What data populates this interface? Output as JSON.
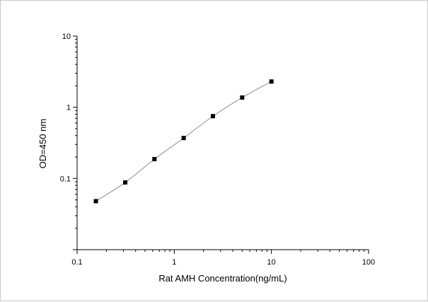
{
  "chart_data": {
    "type": "scatter",
    "title": "",
    "xlabel": "Rat AMH Concentration(ng/mL)",
    "ylabel": "OD=450 nm",
    "x_scale": "log",
    "y_scale": "log",
    "xlim": [
      0.1,
      100
    ],
    "ylim": [
      0.01,
      10
    ],
    "x_ticks": [
      "0.1",
      "1",
      "10",
      "100"
    ],
    "y_ticks": [
      "0.1",
      "1",
      "10"
    ],
    "grid": false,
    "legend": "none",
    "colors": {
      "line": "#8c8c8c",
      "marker": "#000000",
      "axis": "#000000",
      "border": "#c9c9c9"
    },
    "series": [
      {
        "x": [
          0.156,
          0.313,
          0.625,
          1.25,
          2.5,
          5,
          10
        ],
        "y": [
          0.048,
          0.088,
          0.187,
          0.37,
          0.75,
          1.37,
          2.3
        ]
      }
    ]
  }
}
